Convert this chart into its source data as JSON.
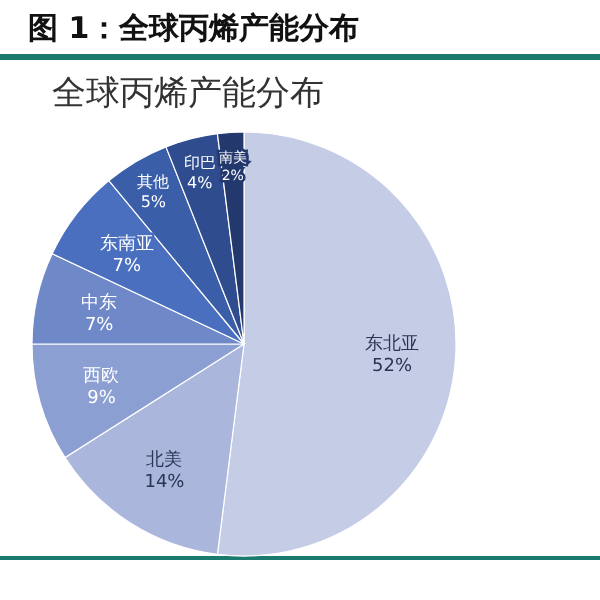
{
  "chart_data": {
    "type": "pie",
    "title": "图 1：全球丙烯产能分布",
    "subtitle": "全球丙烯产能分布",
    "categories": [
      "东北亚",
      "北美",
      "西欧",
      "中东",
      "东南亚",
      "其他",
      "印巴",
      "南美"
    ],
    "values": [
      52,
      14,
      9,
      7,
      7,
      5,
      4,
      2
    ],
    "colors": [
      "#c5cde6",
      "#aab6dc",
      "#8c9fd2",
      "#6f88c8",
      "#4a6fbf",
      "#3a5ea8",
      "#2f4d8e",
      "#23386d"
    ],
    "value_labels": [
      "52%",
      "14%",
      "9%",
      "7%",
      "7%",
      "5%",
      "4%",
      "2%"
    ],
    "legend": false
  }
}
